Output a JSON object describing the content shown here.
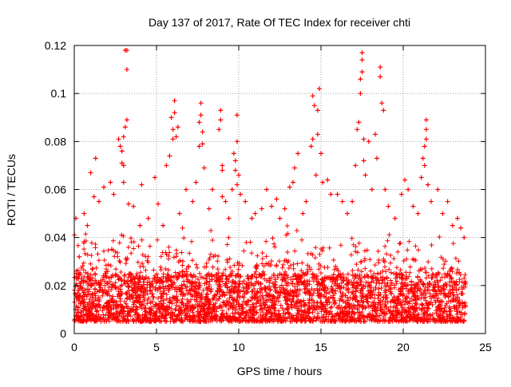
{
  "chart_data": {
    "type": "scatter",
    "title": "Day 137 of 2017, Rate Of TEC Index for receiver chti",
    "xlabel": "GPS time / hours",
    "ylabel": "ROTI / TECUs",
    "xlim": [
      0,
      25
    ],
    "ylim": [
      0,
      0.12
    ],
    "xticks": [
      0,
      5,
      10,
      15,
      20,
      25
    ],
    "xtick_labels": [
      "0",
      "5",
      "10",
      "15",
      "20",
      "25"
    ],
    "yticks": [
      0,
      0.02,
      0.04,
      0.06,
      0.08,
      0.1,
      0.12
    ],
    "ytick_labels": [
      "0",
      "0.02",
      "0.04",
      "0.06",
      "0.08",
      "0.1",
      "0.12"
    ],
    "grid": true,
    "marker": "+",
    "marker_color": "#ff0000",
    "data_range_hours": [
      0,
      23.8
    ],
    "bulk_band": [
      0.005,
      0.025
    ],
    "series": [
      {
        "name": "ROTI",
        "points": [
          [
            0.1,
            0.048
          ],
          [
            0.3,
            0.032
          ],
          [
            0.6,
            0.05
          ],
          [
            0.8,
            0.045
          ],
          [
            1.0,
            0.067
          ],
          [
            1.2,
            0.057
          ],
          [
            1.3,
            0.073
          ],
          [
            1.5,
            0.055
          ],
          [
            1.8,
            0.061
          ],
          [
            2.2,
            0.063
          ],
          [
            2.4,
            0.058
          ],
          [
            2.7,
            0.081
          ],
          [
            2.8,
            0.078
          ],
          [
            2.9,
            0.076
          ],
          [
            2.9,
            0.071
          ],
          [
            3.0,
            0.07
          ],
          [
            3.0,
            0.063
          ],
          [
            3.1,
            0.118
          ],
          [
            3.2,
            0.11
          ],
          [
            3.2,
            0.118
          ],
          [
            3.1,
            0.086
          ],
          [
            3.2,
            0.089
          ],
          [
            3.0,
            0.082
          ],
          [
            3.3,
            0.054
          ],
          [
            3.6,
            0.053
          ],
          [
            4.0,
            0.045
          ],
          [
            4.1,
            0.062
          ],
          [
            4.5,
            0.048
          ],
          [
            4.9,
            0.065
          ],
          [
            5.1,
            0.054
          ],
          [
            5.4,
            0.045
          ],
          [
            5.6,
            0.07
          ],
          [
            5.8,
            0.074
          ],
          [
            5.9,
            0.09
          ],
          [
            6.0,
            0.085
          ],
          [
            6.0,
            0.081
          ],
          [
            6.1,
            0.097
          ],
          [
            6.1,
            0.092
          ],
          [
            6.2,
            0.082
          ],
          [
            6.3,
            0.086
          ],
          [
            6.4,
            0.05
          ],
          [
            6.8,
            0.06
          ],
          [
            7.2,
            0.055
          ],
          [
            7.4,
            0.063
          ],
          [
            7.6,
            0.078
          ],
          [
            7.6,
            0.088
          ],
          [
            7.7,
            0.096
          ],
          [
            7.7,
            0.091
          ],
          [
            7.8,
            0.084
          ],
          [
            7.8,
            0.079
          ],
          [
            7.9,
            0.069
          ],
          [
            8.2,
            0.052
          ],
          [
            8.4,
            0.06
          ],
          [
            8.8,
            0.085
          ],
          [
            8.9,
            0.093
          ],
          [
            8.9,
            0.089
          ],
          [
            9.0,
            0.07
          ],
          [
            9.0,
            0.068
          ],
          [
            9.0,
            0.057
          ],
          [
            9.2,
            0.055
          ],
          [
            9.4,
            0.048
          ],
          [
            9.6,
            0.06
          ],
          [
            9.7,
            0.075
          ],
          [
            9.8,
            0.072
          ],
          [
            9.8,
            0.068
          ],
          [
            9.9,
            0.091
          ],
          [
            9.9,
            0.08
          ],
          [
            9.9,
            0.062
          ],
          [
            10.0,
            0.066
          ],
          [
            10.1,
            0.058
          ],
          [
            10.4,
            0.055
          ],
          [
            10.8,
            0.048
          ],
          [
            11.0,
            0.05
          ],
          [
            11.4,
            0.052
          ],
          [
            11.7,
            0.06
          ],
          [
            12.0,
            0.053
          ],
          [
            12.3,
            0.056
          ],
          [
            12.5,
            0.048
          ],
          [
            12.8,
            0.052
          ],
          [
            13.1,
            0.061
          ],
          [
            13.3,
            0.063
          ],
          [
            13.4,
            0.069
          ],
          [
            13.6,
            0.075
          ],
          [
            13.9,
            0.05
          ],
          [
            14.1,
            0.055
          ],
          [
            14.4,
            0.078
          ],
          [
            14.5,
            0.081
          ],
          [
            14.5,
            0.099
          ],
          [
            14.6,
            0.095
          ],
          [
            14.7,
            0.066
          ],
          [
            14.8,
            0.093
          ],
          [
            14.8,
            0.083
          ],
          [
            14.9,
            0.102
          ],
          [
            15.0,
            0.075
          ],
          [
            15.1,
            0.063
          ],
          [
            15.4,
            0.064
          ],
          [
            15.6,
            0.058
          ],
          [
            16.0,
            0.058
          ],
          [
            16.3,
            0.055
          ],
          [
            16.6,
            0.05
          ],
          [
            16.9,
            0.055
          ],
          [
            17.1,
            0.07
          ],
          [
            17.2,
            0.085
          ],
          [
            17.3,
            0.088
          ],
          [
            17.4,
            0.106
          ],
          [
            17.4,
            0.1
          ],
          [
            17.5,
            0.117
          ],
          [
            17.5,
            0.114
          ],
          [
            17.5,
            0.109
          ],
          [
            17.6,
            0.081
          ],
          [
            17.6,
            0.072
          ],
          [
            17.7,
            0.066
          ],
          [
            17.9,
            0.08
          ],
          [
            18.1,
            0.06
          ],
          [
            18.3,
            0.083
          ],
          [
            18.4,
            0.073
          ],
          [
            18.6,
            0.111
          ],
          [
            18.6,
            0.107
          ],
          [
            18.7,
            0.096
          ],
          [
            18.8,
            0.093
          ],
          [
            18.9,
            0.06
          ],
          [
            19.1,
            0.053
          ],
          [
            19.5,
            0.048
          ],
          [
            19.9,
            0.058
          ],
          [
            20.1,
            0.064
          ],
          [
            20.3,
            0.06
          ],
          [
            20.6,
            0.053
          ],
          [
            20.9,
            0.05
          ],
          [
            21.1,
            0.065
          ],
          [
            21.2,
            0.073
          ],
          [
            21.3,
            0.07
          ],
          [
            21.3,
            0.078
          ],
          [
            21.4,
            0.081
          ],
          [
            21.4,
            0.085
          ],
          [
            21.4,
            0.089
          ],
          [
            21.5,
            0.062
          ],
          [
            21.7,
            0.055
          ],
          [
            22.1,
            0.06
          ],
          [
            22.4,
            0.05
          ],
          [
            22.7,
            0.055
          ],
          [
            23.0,
            0.045
          ],
          [
            23.3,
            0.048
          ],
          [
            23.5,
            0.044
          ],
          [
            23.7,
            0.04
          ]
        ]
      }
    ]
  }
}
